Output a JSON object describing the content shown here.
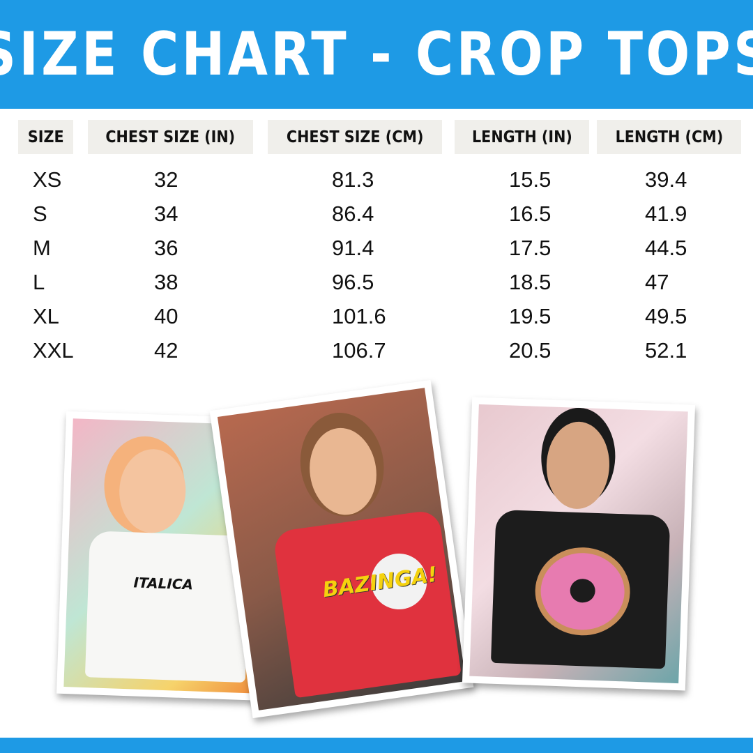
{
  "title": "SIZE CHART - CROP TOPS",
  "colors": {
    "brand_blue": "#1e9ae5",
    "header_cell_bg": "#f0efeb"
  },
  "table": {
    "headers": [
      "SIZE",
      "CHEST SIZE (IN)",
      "CHEST SIZE (CM)",
      "LENGTH (IN)",
      "LENGTH (CM)"
    ],
    "rows": [
      [
        "XS",
        "32",
        "81.3",
        "15.5",
        "39.4"
      ],
      [
        "S",
        "34",
        "86.4",
        "16.5",
        "41.9"
      ],
      [
        "M",
        "36",
        "91.4",
        "17.5",
        "44.5"
      ],
      [
        "L",
        "38",
        "96.5",
        "18.5",
        "47"
      ],
      [
        "XL",
        "40",
        "101.6",
        "19.5",
        "49.5"
      ],
      [
        "XXL",
        "42",
        "106.7",
        "20.5",
        "52.1"
      ]
    ]
  },
  "photos": [
    {
      "shirt_color": "#f7f7f5",
      "print": "ITALICA"
    },
    {
      "shirt_color": "#e0323e",
      "print": "BAZINGA!"
    },
    {
      "shirt_color": "#1c1c1c",
      "print": "donut"
    }
  ]
}
